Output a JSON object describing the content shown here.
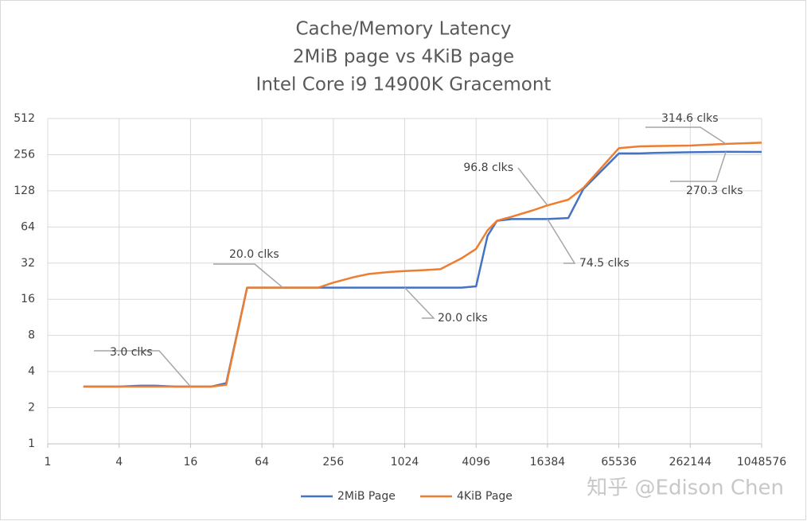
{
  "chart_data": {
    "type": "line",
    "title": [
      "Cache/Memory  Latency",
      "2MiB page vs 4KiB page",
      "Intel Core i9 14900K Gracemont"
    ],
    "x": [
      2,
      4,
      6,
      8,
      12,
      16,
      24,
      32,
      48,
      64,
      96,
      128,
      192,
      256,
      384,
      512,
      768,
      1024,
      1536,
      2048,
      3072,
      4096,
      5120,
      6144,
      8192,
      12288,
      16384,
      24576,
      32768,
      65536,
      98304,
      131072,
      262144,
      524288,
      1048576
    ],
    "series": [
      {
        "name": "2MiB Page",
        "color": "#4472c4",
        "values": [
          3,
          3,
          3.05,
          3.05,
          3,
          3,
          3,
          3.2,
          20,
          20,
          20,
          20,
          20,
          20,
          20,
          20,
          20,
          20,
          20,
          20,
          20,
          20.5,
          54,
          72,
          74.5,
          74.5,
          74.5,
          76,
          132,
          262,
          262,
          265,
          268,
          270.3,
          270
        ]
      },
      {
        "name": "4KiB Page",
        "color": "#ed7d31",
        "values": [
          3,
          3,
          3,
          3,
          3,
          3,
          3,
          3.1,
          20,
          20,
          20,
          20,
          20,
          22,
          24.5,
          26,
          27,
          27.5,
          28,
          28.5,
          35,
          42,
          60,
          72,
          78,
          88,
          96.8,
          108,
          135,
          290,
          300,
          302,
          305,
          314.6,
          322
        ]
      }
    ],
    "annotations": [
      "3.0 clks",
      "20.0 clks",
      "20.0 clks",
      "96.8 clks",
      "74.5 clks",
      "314.6 clks",
      "270.3 clks"
    ],
    "xlim": [
      1,
      1048576
    ],
    "ylim": [
      1,
      512
    ],
    "xticks": [
      1,
      4,
      16,
      64,
      256,
      1024,
      4096,
      16384,
      65536,
      262144,
      1048576
    ],
    "yticks": [
      1,
      2,
      4,
      8,
      16,
      32,
      64,
      128,
      256,
      512
    ],
    "xscale": "log",
    "yscale": "log",
    "grid": true,
    "legend": "bottom",
    "watermark": "知乎 @Edison Chen"
  }
}
